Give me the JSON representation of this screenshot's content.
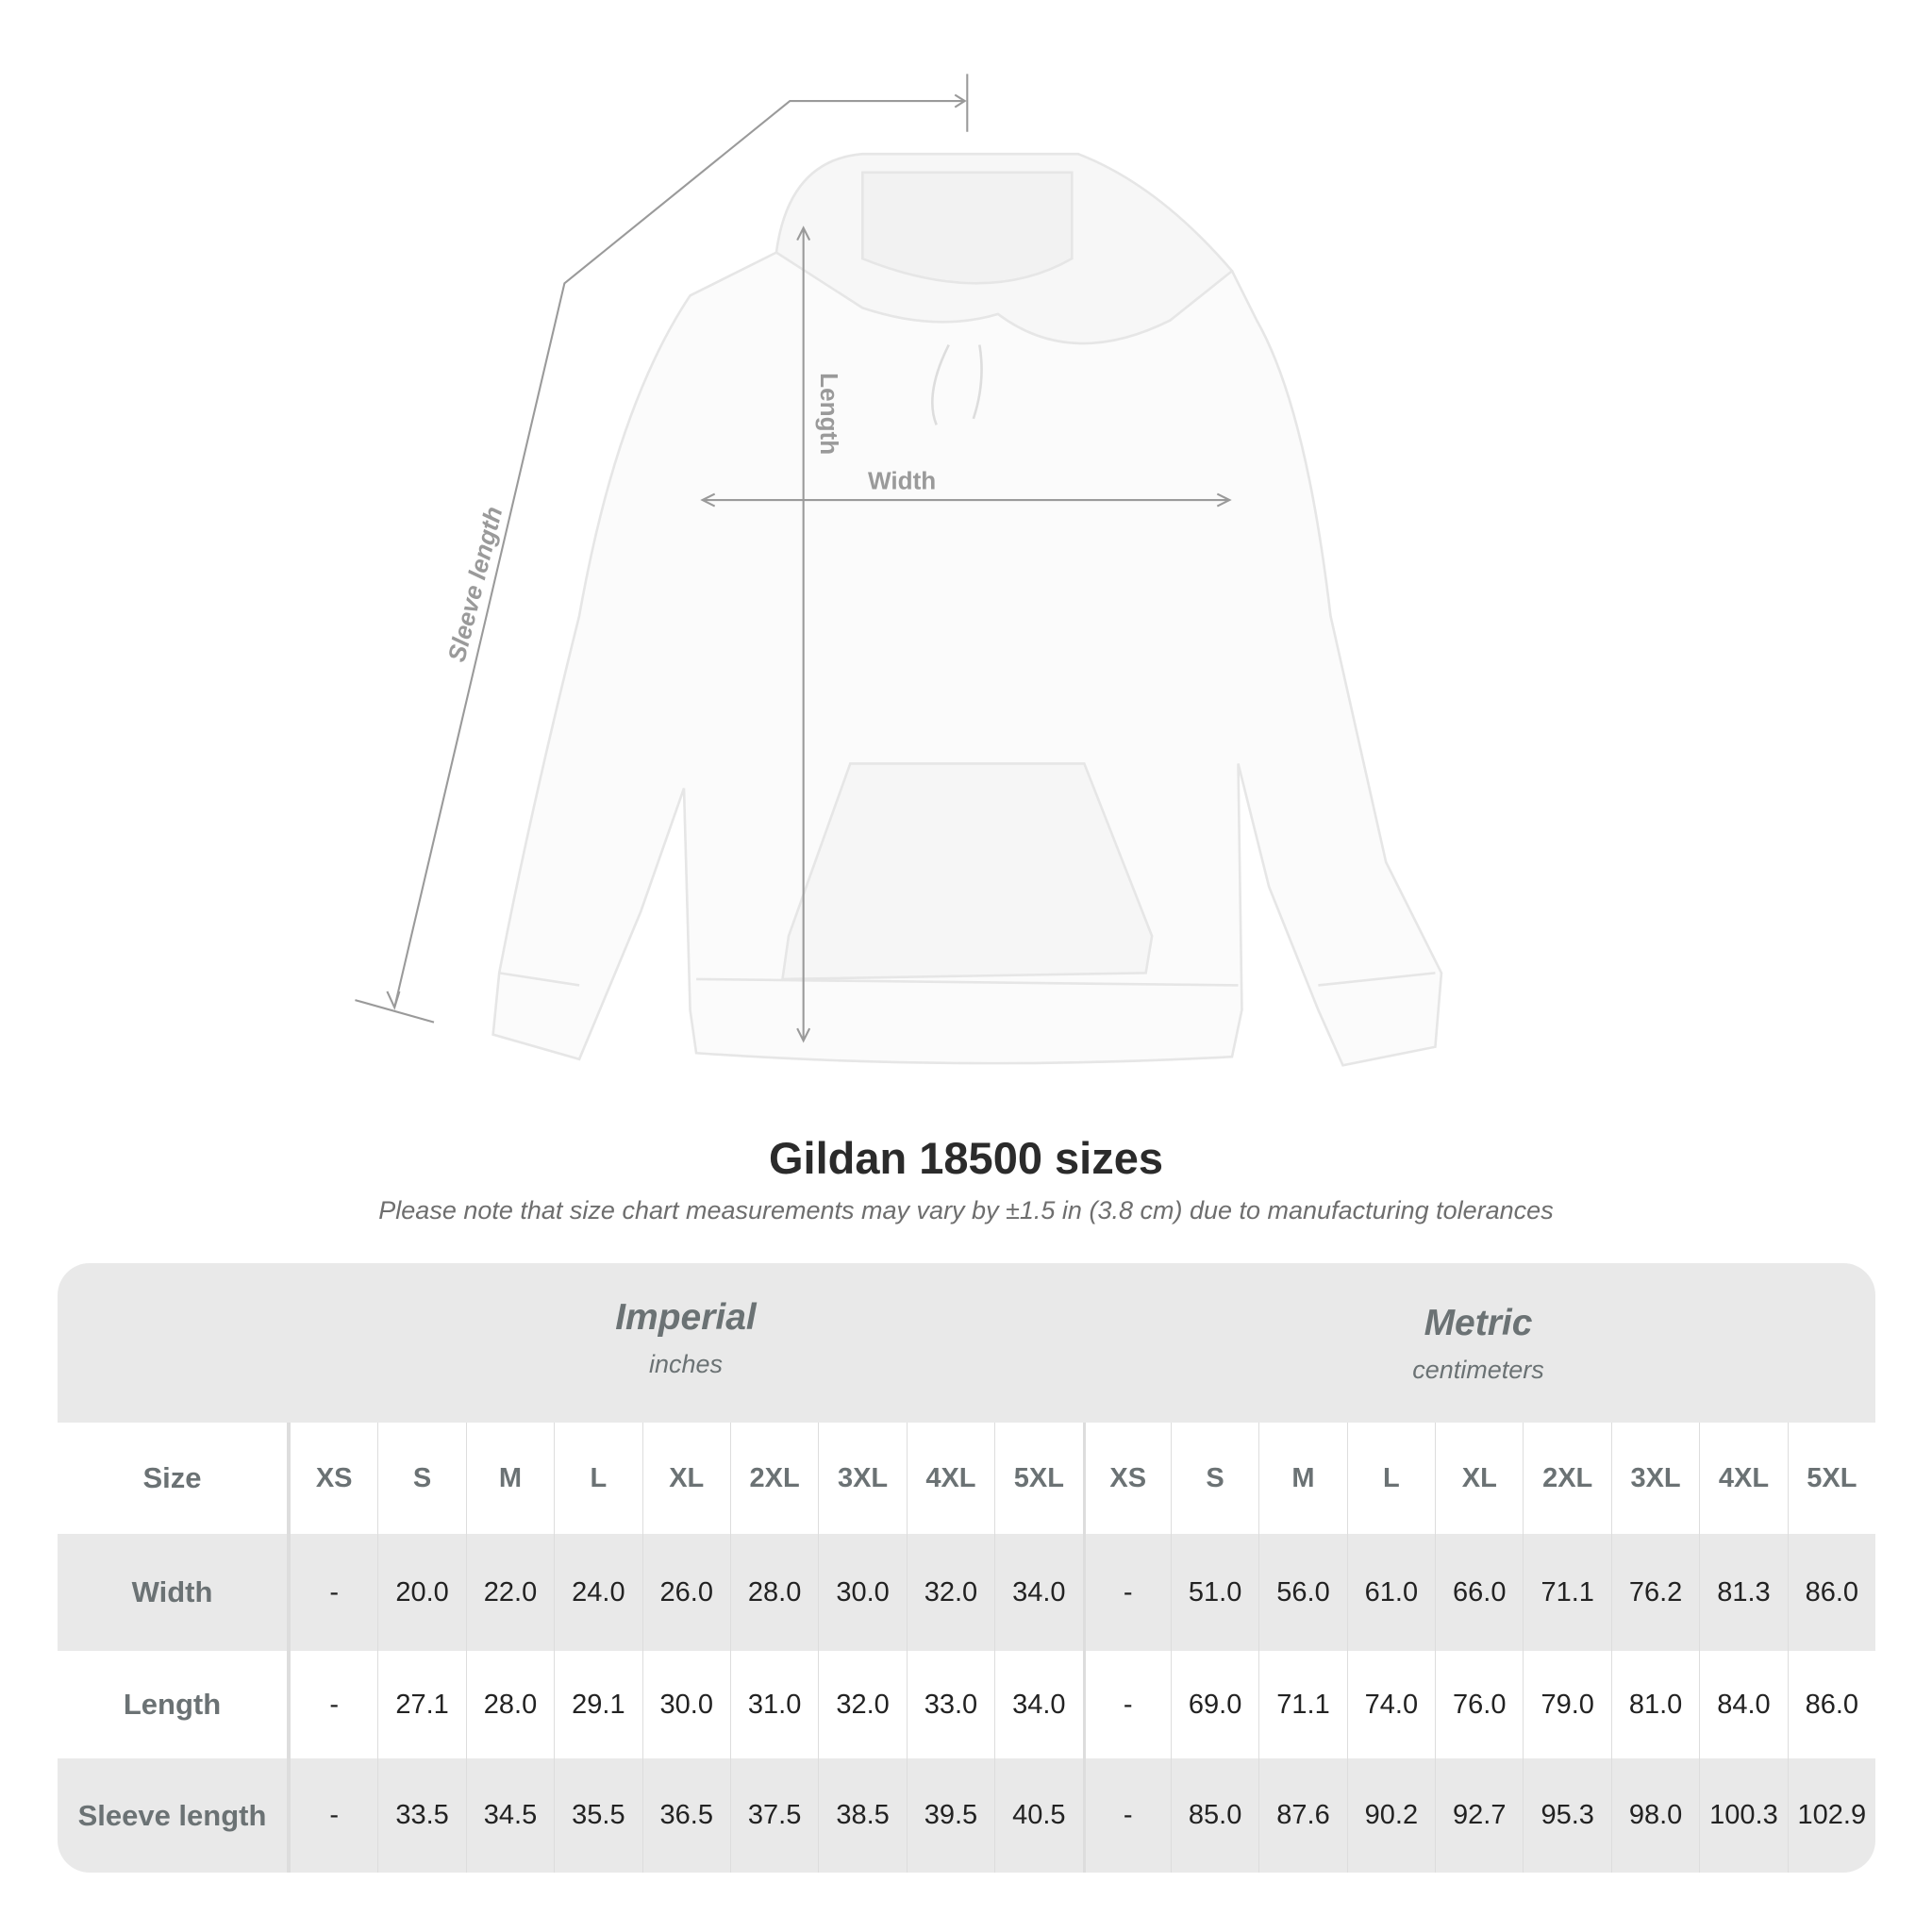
{
  "figure": {
    "labels": {
      "sleeve": "Sleeve length",
      "length": "Length",
      "width": "Width"
    },
    "line_color": "#9a9a9a"
  },
  "title": "Gildan 18500 sizes",
  "subtitle": "Please note that size chart measurements may vary by ±1.5 in (3.8 cm) due to manufacturing tolerances",
  "table": {
    "imperial": {
      "name": "Imperial",
      "unit": "inches"
    },
    "metric": {
      "name": "Metric",
      "unit": "centimeters"
    },
    "size_label": "Size",
    "sizes": [
      "XS",
      "S",
      "M",
      "L",
      "XL",
      "2XL",
      "3XL",
      "4XL",
      "5XL"
    ],
    "rows": [
      {
        "label": "Width",
        "imperial": [
          "-",
          "20.0",
          "22.0",
          "24.0",
          "26.0",
          "28.0",
          "30.0",
          "32.0",
          "34.0"
        ],
        "metric": [
          "-",
          "51.0",
          "56.0",
          "61.0",
          "66.0",
          "71.1",
          "76.2",
          "81.3",
          "86.0"
        ]
      },
      {
        "label": "Length",
        "imperial": [
          "-",
          "27.1",
          "28.0",
          "29.1",
          "30.0",
          "31.0",
          "32.0",
          "33.0",
          "34.0"
        ],
        "metric": [
          "-",
          "69.0",
          "71.1",
          "74.0",
          "76.0",
          "79.0",
          "81.0",
          "84.0",
          "86.0"
        ]
      },
      {
        "label": "Sleeve length",
        "imperial": [
          "-",
          "33.5",
          "34.5",
          "35.5",
          "36.5",
          "37.5",
          "38.5",
          "39.5",
          "40.5"
        ],
        "metric": [
          "-",
          "85.0",
          "87.6",
          "90.2",
          "92.7",
          "95.3",
          "98.0",
          "100.3",
          "102.9"
        ]
      }
    ]
  }
}
